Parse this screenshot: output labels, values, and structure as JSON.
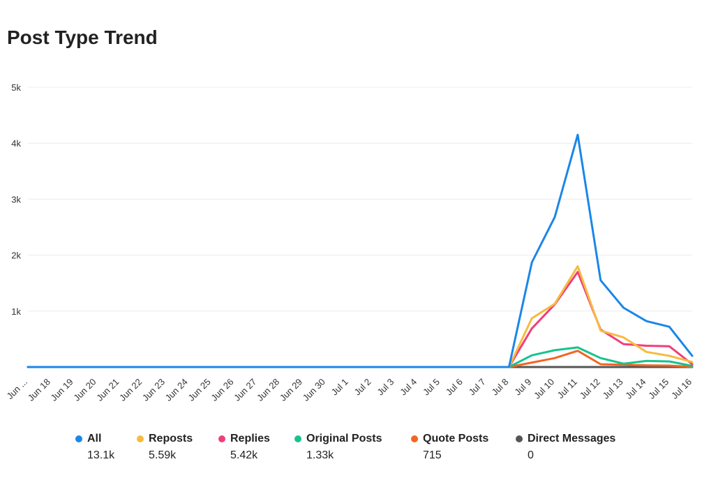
{
  "title": "Post Type Trend",
  "chart_data": {
    "type": "line",
    "title": "Post Type Trend",
    "x": [
      "Jun ...",
      "Jun 18",
      "Jun 19",
      "Jun 20",
      "Jun 21",
      "Jun 22",
      "Jun 23",
      "Jun 24",
      "Jun 25",
      "Jun 26",
      "Jun 27",
      "Jun 28",
      "Jun 29",
      "Jun 30",
      "Jul 1",
      "Jul 2",
      "Jul 3",
      "Jul 4",
      "Jul 5",
      "Jul 6",
      "Jul 7",
      "Jul 8",
      "Jul 9",
      "Jul 10",
      "Jul 11",
      "Jul 12",
      "Jul 13",
      "Jul 14",
      "Jul 15",
      "Jul 16"
    ],
    "y_ticks": [
      1000,
      2000,
      3000,
      4000,
      5000
    ],
    "y_tick_labels": [
      "1k",
      "2k",
      "3k",
      "4k",
      "5k"
    ],
    "ylim": [
      0,
      5000
    ],
    "grid": true,
    "legend_position": "bottom",
    "series": [
      {
        "name": "All",
        "color": "#1a86e8",
        "total": "13.1k",
        "values": [
          0,
          0,
          0,
          0,
          0,
          0,
          0,
          0,
          0,
          0,
          0,
          0,
          0,
          0,
          0,
          0,
          0,
          0,
          0,
          0,
          0,
          0,
          1870,
          2680,
          4150,
          1550,
          1060,
          820,
          720,
          200
        ]
      },
      {
        "name": "Reposts",
        "color": "#f6bb42",
        "total": "5.59k",
        "values": [
          0,
          0,
          0,
          0,
          0,
          0,
          0,
          0,
          0,
          0,
          0,
          0,
          0,
          0,
          0,
          0,
          0,
          0,
          0,
          0,
          0,
          0,
          870,
          1130,
          1800,
          650,
          530,
          270,
          200,
          90
        ]
      },
      {
        "name": "Replies",
        "color": "#ef3f7a",
        "total": "5.42k",
        "values": [
          0,
          0,
          0,
          0,
          0,
          0,
          0,
          0,
          0,
          0,
          0,
          0,
          0,
          0,
          0,
          0,
          0,
          0,
          0,
          0,
          0,
          0,
          690,
          1120,
          1700,
          670,
          410,
          380,
          370,
          50
        ]
      },
      {
        "name": "Original Posts",
        "color": "#17c38d",
        "total": "1.33k",
        "values": [
          0,
          0,
          0,
          0,
          0,
          0,
          0,
          0,
          0,
          0,
          0,
          0,
          0,
          0,
          0,
          0,
          0,
          0,
          0,
          0,
          0,
          0,
          210,
          300,
          350,
          160,
          60,
          110,
          100,
          20
        ]
      },
      {
        "name": "Quote Posts",
        "color": "#f26522",
        "total": "715",
        "values": [
          0,
          0,
          0,
          0,
          0,
          0,
          0,
          0,
          0,
          0,
          0,
          0,
          0,
          0,
          0,
          0,
          0,
          0,
          0,
          0,
          0,
          0,
          80,
          160,
          290,
          50,
          40,
          30,
          25,
          5
        ]
      },
      {
        "name": "Direct Messages",
        "color": "#555555",
        "total": "0",
        "values": [
          0,
          0,
          0,
          0,
          0,
          0,
          0,
          0,
          0,
          0,
          0,
          0,
          0,
          0,
          0,
          0,
          0,
          0,
          0,
          0,
          0,
          0,
          0,
          0,
          0,
          0,
          0,
          0,
          0,
          0
        ]
      }
    ]
  }
}
